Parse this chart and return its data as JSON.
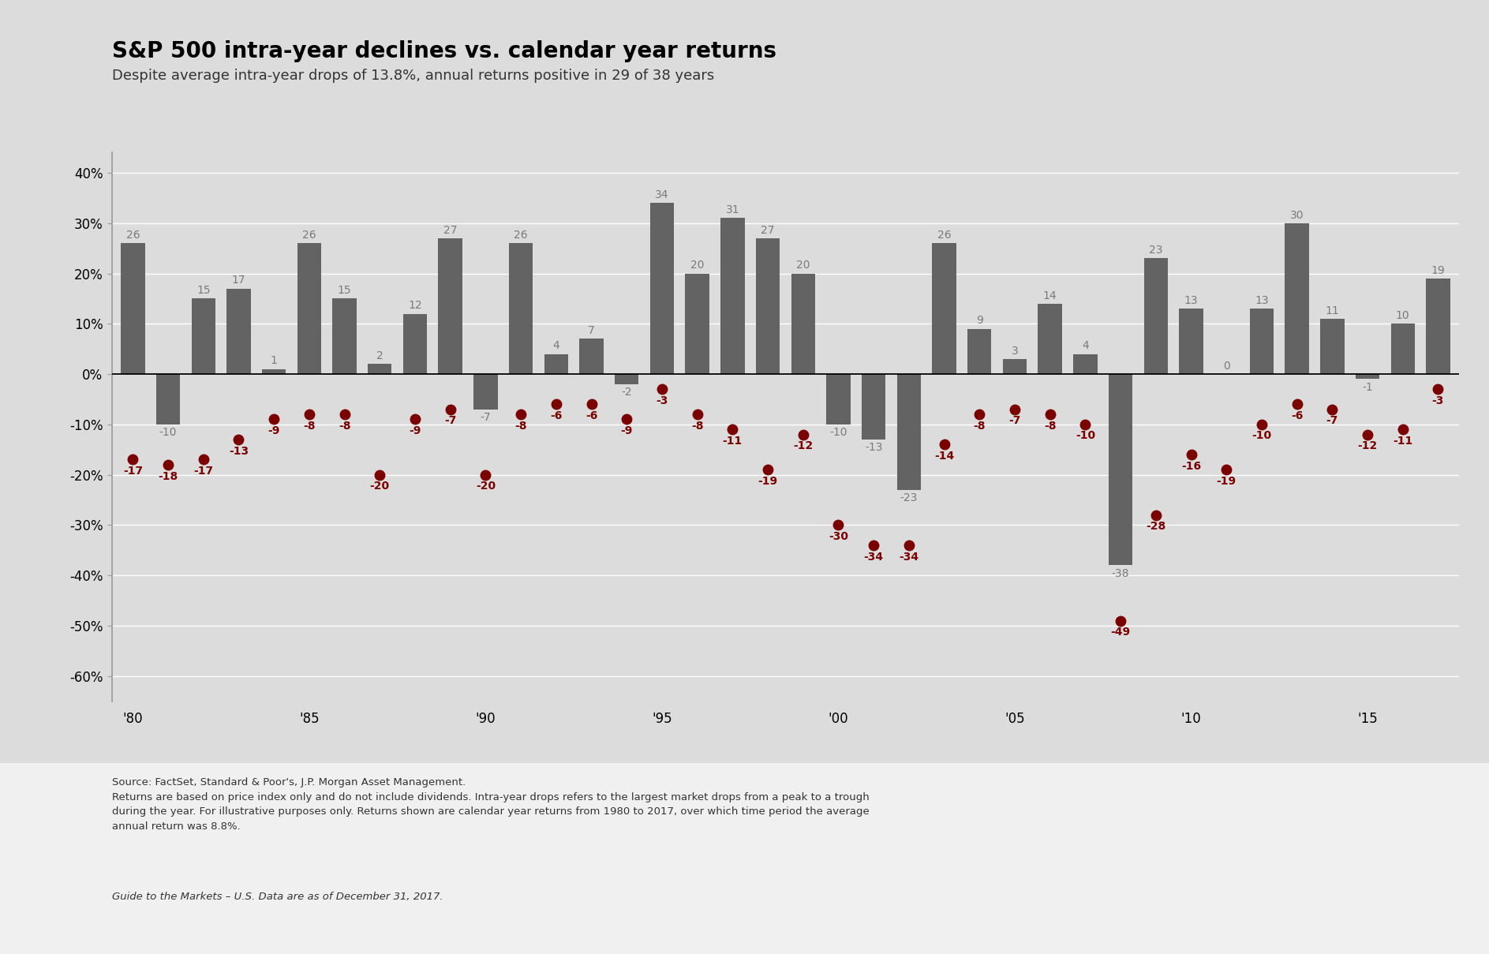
{
  "title": "S&P 500 intra-year declines vs. calendar year returns",
  "subtitle": "Despite average intra-year drops of 13.8%, annual returns positive in 29 of 38 years",
  "years": [
    1980,
    1981,
    1982,
    1983,
    1984,
    1985,
    1986,
    1987,
    1988,
    1989,
    1990,
    1991,
    1992,
    1993,
    1994,
    1995,
    1996,
    1997,
    1998,
    1999,
    2000,
    2001,
    2002,
    2003,
    2004,
    2005,
    2006,
    2007,
    2008,
    2009,
    2010,
    2011,
    2012,
    2013,
    2014,
    2015,
    2016,
    2017
  ],
  "calendar_returns": [
    26,
    -10,
    15,
    17,
    1,
    26,
    15,
    2,
    12,
    27,
    -7,
    26,
    4,
    7,
    -2,
    34,
    20,
    31,
    27,
    20,
    -10,
    -13,
    -23,
    26,
    9,
    3,
    14,
    4,
    -38,
    23,
    13,
    0,
    13,
    30,
    11,
    -1,
    10,
    19
  ],
  "intra_year_drops": [
    -17,
    -18,
    -17,
    -13,
    -9,
    -8,
    -8,
    -20,
    -9,
    -7,
    -20,
    -8,
    -6,
    -6,
    -9,
    -3,
    -8,
    -11,
    -19,
    -12,
    -30,
    -34,
    -34,
    -14,
    -8,
    -7,
    -8,
    -10,
    -49,
    -28,
    -16,
    -19,
    -10,
    -6,
    -7,
    -12,
    -11,
    -3
  ],
  "bar_color": "#636363",
  "dot_color": "#7B0000",
  "background_color": "#DCDCDC",
  "chart_bg_color": "#DCDCDC",
  "outer_bg_color": "#F0F0F0",
  "bar_label_color": "#7A7A7A",
  "title_fontsize": 20,
  "subtitle_fontsize": 13,
  "tick_fontsize": 12,
  "bar_label_fontsize": 10,
  "dot_label_fontsize": 10,
  "ylim": [
    -65,
    44
  ],
  "yticks": [
    -60,
    -50,
    -40,
    -30,
    -20,
    -10,
    0,
    10,
    20,
    30,
    40
  ],
  "ytick_labels": [
    "-60%",
    "-50%",
    "-40%",
    "-30%",
    "-20%",
    "-10%",
    "0%",
    "10%",
    "20%",
    "30%",
    "40%"
  ],
  "footer_main": "Source: FactSet, Standard & Poor's, J.P. Morgan Asset Management.\nReturns are based on price index only and do not include dividends. Intra-year drops refers to the largest market drops from a peak to a trough\nduring the year. For illustrative purposes only. Returns shown are calendar year returns from 1980 to 2017, over which time period the average\nannual return was 8.8%.",
  "footer_italic": "Guide to the Markets – U.S. Data are as of December 31, 2017."
}
